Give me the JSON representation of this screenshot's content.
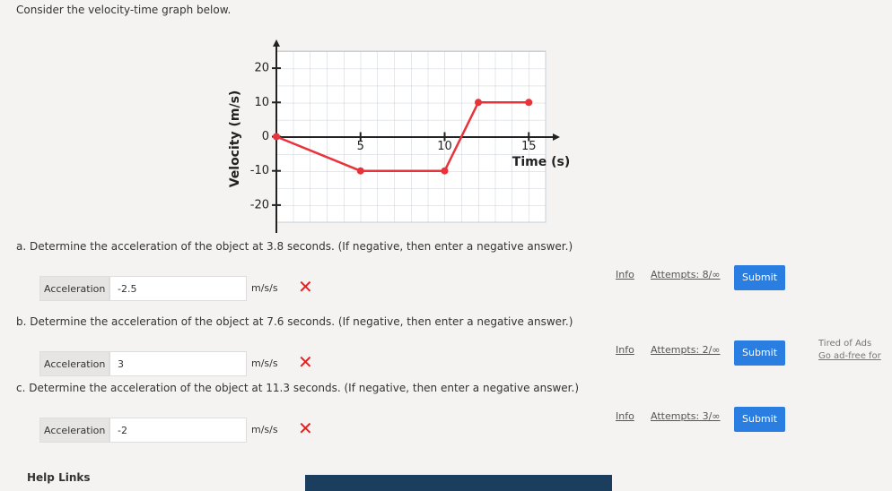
{
  "prompt": "Consider the velocity-time graph below.",
  "graph": {
    "type": "line",
    "xlabel": "Time (s)",
    "ylabel": "Velocity (m/s)",
    "x": [
      0,
      5,
      10,
      12,
      15
    ],
    "values": [
      0,
      -10,
      -10,
      10,
      10
    ],
    "color": "#e8333b",
    "xlim": [
      0,
      16
    ],
    "ylim": [
      -25,
      25
    ],
    "xticks": [
      5,
      10,
      15
    ],
    "yticks": [
      -20,
      -10,
      0,
      10,
      20
    ],
    "grid": true
  },
  "questions": [
    {
      "text": "a. Determine the acceleration of the object at 3.8 seconds. (If negative, then enter a negative answer.)",
      "label": "Acceleration",
      "answer": "-2.5",
      "unit": "m/s/s",
      "info": "Info",
      "attempts": "Attempts: 8/∞",
      "submit": "Submit"
    },
    {
      "text": "b. Determine the acceleration of the object at 7.6 seconds. (If negative, then enter a negative answer.)",
      "label": "Acceleration",
      "answer": "3",
      "unit": "m/s/s",
      "info": "Info",
      "attempts": "Attempts: 2/∞",
      "submit": "Submit"
    },
    {
      "text": "c. Determine the acceleration of the object at 11.3 seconds. (If negative, then enter a negative answer.)",
      "label": "Acceleration",
      "answer": "-2",
      "unit": "m/s/s",
      "info": "Info",
      "attempts": "Attempts: 3/∞",
      "submit": "Submit"
    }
  ],
  "ad": {
    "title": "Tired of Ads",
    "link": "Go ad-free for"
  },
  "footer": {
    "help": "Help Links"
  }
}
